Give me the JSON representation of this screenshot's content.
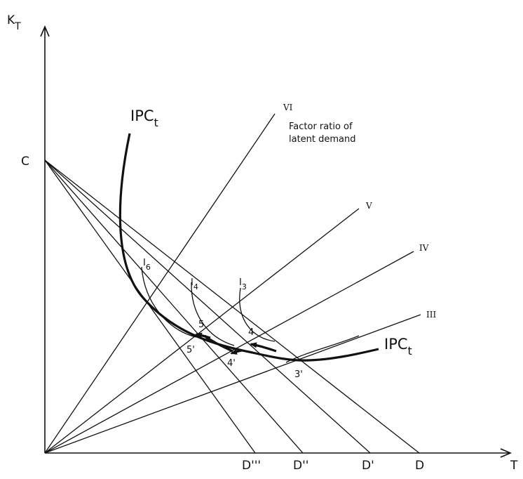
{
  "axes": {
    "y_label_main": "K",
    "y_label_sub": "T",
    "x_label": "T",
    "origin_label_C": "C"
  },
  "rays": {
    "vi": "VI",
    "vi_note_line1": "Factor ratio of",
    "vi_note_line2": "latent demand",
    "v": "V",
    "iv": "IV",
    "iii": "III"
  },
  "budget_lines": {
    "d": "D",
    "d1": "D'",
    "d2": "D''",
    "d3": "D'''"
  },
  "curves": {
    "ipc_main": "IPC",
    "ipc_sub": "t",
    "i3_main": "I",
    "i3_sub": "3",
    "i4_main": "I",
    "i4_sub": "4",
    "i6_main": "I",
    "i6_sub": "6"
  },
  "points": {
    "p3prime": "3'",
    "p4": "4",
    "p4prime": "4'",
    "p5": "5",
    "p5prime": "5'"
  }
}
